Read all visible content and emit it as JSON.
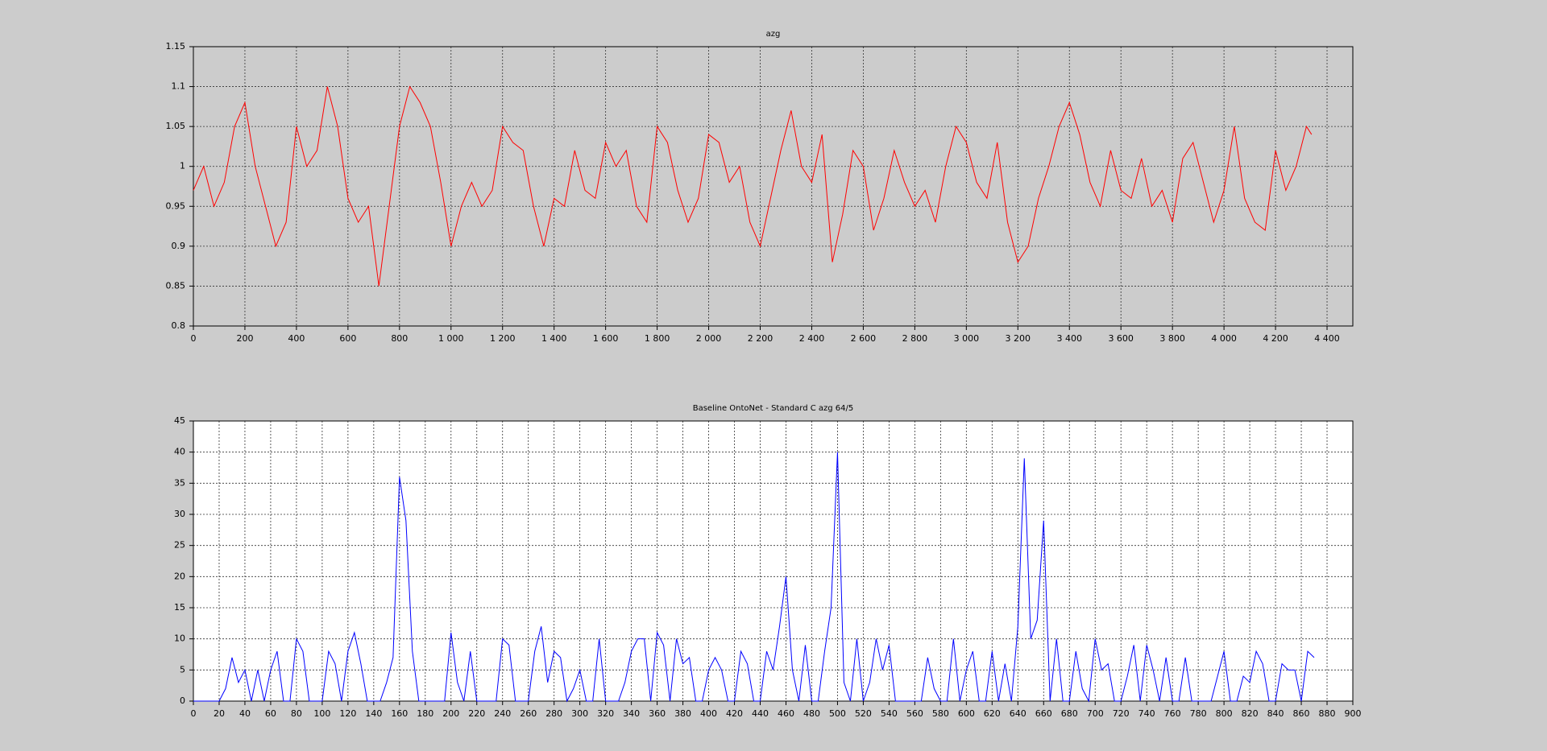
{
  "chart_data": [
    {
      "type": "line",
      "title": "azg",
      "x": [
        0,
        40,
        80,
        120,
        160,
        200,
        240,
        280,
        320,
        360,
        400,
        440,
        480,
        520,
        560,
        600,
        640,
        680,
        720,
        760,
        800,
        840,
        880,
        920,
        960,
        1000,
        1040,
        1080,
        1120,
        1160,
        1200,
        1240,
        1280,
        1320,
        1360,
        1400,
        1440,
        1480,
        1520,
        1560,
        1600,
        1640,
        1680,
        1720,
        1760,
        1800,
        1840,
        1880,
        1920,
        1960,
        2000,
        2040,
        2080,
        2120,
        2160,
        2200,
        2240,
        2280,
        2320,
        2360,
        2400,
        2440,
        2480,
        2520,
        2560,
        2600,
        2640,
        2680,
        2720,
        2760,
        2800,
        2840,
        2880,
        2920,
        2960,
        3000,
        3040,
        3080,
        3120,
        3160,
        3200,
        3240,
        3280,
        3320,
        3360,
        3400,
        3440,
        3480,
        3520,
        3560,
        3600,
        3640,
        3680,
        3720,
        3760,
        3800,
        3840,
        3880,
        3920,
        3960,
        4000,
        4040,
        4080,
        4120,
        4160,
        4200,
        4240,
        4280,
        4320,
        4340
      ],
      "series": [
        {
          "color": "#ff0000",
          "values": [
            0.97,
            1.0,
            0.95,
            0.98,
            1.05,
            1.08,
            1.0,
            0.95,
            0.9,
            0.93,
            1.05,
            1.0,
            1.02,
            1.1,
            1.05,
            0.96,
            0.93,
            0.95,
            0.85,
            0.95,
            1.05,
            1.1,
            1.08,
            1.05,
            0.98,
            0.9,
            0.95,
            0.98,
            0.95,
            0.97,
            1.05,
            1.03,
            1.02,
            0.95,
            0.9,
            0.96,
            0.95,
            1.02,
            0.97,
            0.96,
            1.03,
            1.0,
            1.02,
            0.95,
            0.93,
            1.05,
            1.03,
            0.97,
            0.93,
            0.96,
            1.04,
            1.03,
            0.98,
            1.0,
            0.93,
            0.9,
            0.96,
            1.02,
            1.07,
            1.0,
            0.98,
            1.04,
            0.88,
            0.94,
            1.02,
            1.0,
            0.92,
            0.96,
            1.02,
            0.98,
            0.95,
            0.97,
            0.93,
            1.0,
            1.05,
            1.03,
            0.98,
            0.96,
            1.03,
            0.93,
            0.88,
            0.9,
            0.96,
            1.0,
            1.05,
            1.08,
            1.04,
            0.98,
            0.95,
            1.02,
            0.97,
            0.96,
            1.01,
            0.95,
            0.97,
            0.93,
            1.01,
            1.03,
            0.98,
            0.93,
            0.97,
            1.05,
            0.96,
            0.93,
            0.92,
            1.02,
            0.97,
            1.0,
            1.05,
            1.04
          ]
        }
      ],
      "xlim": [
        0,
        4500
      ],
      "ylim": [
        0.8,
        1.15
      ],
      "xticks": [
        0,
        200,
        400,
        600,
        800,
        {
          "value": 1000,
          "label": "1 000"
        },
        {
          "value": 1200,
          "label": "1 200"
        },
        {
          "value": 1400,
          "label": "1 400"
        },
        {
          "value": 1600,
          "label": "1 600"
        },
        {
          "value": 1800,
          "label": "1 800"
        },
        {
          "value": 2000,
          "label": "2 000"
        },
        {
          "value": 2200,
          "label": "2 200"
        },
        {
          "value": 2400,
          "label": "2 400"
        },
        {
          "value": 2600,
          "label": "2 600"
        },
        {
          "value": 2800,
          "label": "2 800"
        },
        {
          "value": 3000,
          "label": "3 000"
        },
        {
          "value": 3200,
          "label": "3 200"
        },
        {
          "value": 3400,
          "label": "3 400"
        },
        {
          "value": 3600,
          "label": "3 600"
        },
        {
          "value": 3800,
          "label": "3 800"
        },
        {
          "value": 4000,
          "label": "4 000"
        },
        {
          "value": 4200,
          "label": "4 200"
        },
        {
          "value": 4400,
          "label": "4 400"
        }
      ],
      "yticks": [
        0.8,
        0.85,
        0.9,
        0.95,
        1,
        1.05,
        1.1,
        1.15
      ],
      "grid": true
    },
    {
      "type": "line",
      "title": "Baseline OntoNet - Standard C  azg   64/5",
      "x": [
        0,
        5,
        10,
        15,
        20,
        25,
        30,
        35,
        40,
        45,
        50,
        55,
        60,
        65,
        70,
        75,
        80,
        85,
        90,
        95,
        100,
        105,
        110,
        115,
        120,
        125,
        130,
        135,
        140,
        145,
        150,
        155,
        160,
        165,
        170,
        175,
        180,
        185,
        190,
        195,
        200,
        205,
        210,
        215,
        220,
        225,
        230,
        235,
        240,
        245,
        250,
        255,
        260,
        265,
        270,
        275,
        280,
        285,
        290,
        295,
        300,
        305,
        310,
        315,
        320,
        325,
        330,
        335,
        340,
        345,
        350,
        355,
        360,
        365,
        370,
        375,
        380,
        385,
        390,
        395,
        400,
        405,
        410,
        415,
        420,
        425,
        430,
        435,
        440,
        445,
        450,
        455,
        460,
        465,
        470,
        475,
        480,
        485,
        490,
        495,
        500,
        505,
        510,
        515,
        520,
        525,
        530,
        535,
        540,
        545,
        550,
        555,
        560,
        565,
        570,
        575,
        580,
        585,
        590,
        595,
        600,
        605,
        610,
        615,
        620,
        625,
        630,
        635,
        640,
        645,
        650,
        655,
        660,
        665,
        670,
        675,
        680,
        685,
        690,
        695,
        700,
        705,
        710,
        715,
        720,
        725,
        730,
        735,
        740,
        745,
        750,
        755,
        760,
        765,
        770,
        775,
        780,
        785,
        790,
        795,
        800,
        805,
        810,
        815,
        820,
        825,
        830,
        835,
        840,
        845,
        850,
        855,
        860,
        865,
        870
      ],
      "series": [
        {
          "color": "#0000ff",
          "values": [
            0,
            0,
            0,
            0,
            0,
            2,
            7,
            3,
            5,
            0,
            5,
            0,
            5,
            8,
            0,
            0,
            10,
            8,
            0,
            0,
            0,
            8,
            6,
            0,
            8,
            11,
            6,
            0,
            0,
            0,
            3,
            7,
            36,
            29,
            8,
            0,
            0,
            0,
            0,
            0,
            11,
            3,
            0,
            8,
            0,
            0,
            0,
            0,
            10,
            9,
            0,
            0,
            0,
            8,
            12,
            3,
            8,
            7,
            0,
            2,
            5,
            0,
            0,
            10,
            0,
            0,
            0,
            3,
            8,
            10,
            10,
            0,
            11,
            9,
            0,
            10,
            6,
            7,
            0,
            0,
            5,
            7,
            5,
            0,
            0,
            8,
            6,
            0,
            0,
            8,
            5,
            12,
            20,
            5,
            0,
            9,
            0,
            0,
            8,
            15,
            40,
            3,
            0,
            10,
            0,
            3,
            10,
            5,
            9,
            0,
            0,
            0,
            0,
            0,
            7,
            2,
            0,
            0,
            10,
            0,
            5,
            8,
            0,
            0,
            8,
            0,
            6,
            0,
            12,
            39,
            10,
            13,
            29,
            0,
            10,
            0,
            0,
            8,
            2,
            0,
            10,
            5,
            6,
            0,
            0,
            4,
            9,
            0,
            9,
            5,
            0,
            7,
            0,
            0,
            7,
            0,
            0,
            0,
            0,
            4,
            8,
            0,
            0,
            4,
            3,
            8,
            6,
            0,
            0,
            6,
            5,
            5,
            0,
            8,
            7
          ]
        }
      ],
      "xlim": [
        0,
        900
      ],
      "ylim": [
        0,
        45
      ],
      "xticks": [
        0,
        20,
        40,
        60,
        80,
        100,
        120,
        140,
        160,
        180,
        200,
        220,
        240,
        260,
        280,
        300,
        320,
        340,
        360,
        380,
        400,
        420,
        440,
        460,
        480,
        500,
        520,
        540,
        560,
        580,
        600,
        620,
        640,
        660,
        680,
        700,
        720,
        740,
        760,
        780,
        800,
        820,
        840,
        860,
        880,
        900
      ],
      "yticks": [
        0,
        5,
        10,
        15,
        20,
        25,
        30,
        35,
        40,
        45
      ],
      "grid": true
    }
  ]
}
